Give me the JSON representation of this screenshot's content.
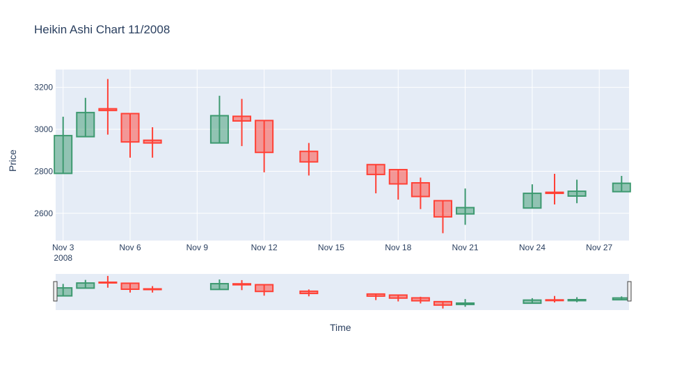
{
  "chart_data": {
    "type": "candlestick",
    "title": "Heikin Ashi Chart 11/2008",
    "xlabel": "Time",
    "ylabel": "Price",
    "x_range": [
      "2008-11-02T16:00",
      "2008-11-28T08:00"
    ],
    "ylim": [
      2470,
      3285
    ],
    "yticks": [
      2600,
      2800,
      3000,
      3200
    ],
    "xticks": [
      {
        "date": "2008-11-03",
        "label": "Nov 3",
        "sublabel": "2008"
      },
      {
        "date": "2008-11-06",
        "label": "Nov 6"
      },
      {
        "date": "2008-11-09",
        "label": "Nov 9"
      },
      {
        "date": "2008-11-12",
        "label": "Nov 12"
      },
      {
        "date": "2008-11-15",
        "label": "Nov 15"
      },
      {
        "date": "2008-11-18",
        "label": "Nov 18"
      },
      {
        "date": "2008-11-21",
        "label": "Nov 21"
      },
      {
        "date": "2008-11-24",
        "label": "Nov 24"
      },
      {
        "date": "2008-11-27",
        "label": "Nov 27"
      }
    ],
    "grid": true,
    "rangeslider": true,
    "colors": {
      "increasing": "#3d9970",
      "decreasing": "#ff4136",
      "plot_bg": "#e5ecf6",
      "grid": "#ffffff",
      "text": "#2a3f5f"
    },
    "candles": [
      {
        "date": "2008-11-03",
        "open": 2790,
        "high": 3060,
        "low": 2790,
        "close": 2970
      },
      {
        "date": "2008-11-04",
        "open": 2965,
        "high": 3150,
        "low": 2965,
        "close": 3080
      },
      {
        "date": "2008-11-05",
        "open": 3098,
        "high": 3240,
        "low": 2975,
        "close": 3090
      },
      {
        "date": "2008-11-06",
        "open": 3075,
        "high": 3075,
        "low": 2865,
        "close": 2940
      },
      {
        "date": "2008-11-07",
        "open": 2948,
        "high": 3010,
        "low": 2865,
        "close": 2935
      },
      {
        "date": "2008-11-10",
        "open": 2935,
        "high": 3160,
        "low": 2935,
        "close": 3065
      },
      {
        "date": "2008-11-11",
        "open": 3062,
        "high": 3145,
        "low": 2920,
        "close": 3040
      },
      {
        "date": "2008-11-12",
        "open": 3042,
        "high": 3042,
        "low": 2795,
        "close": 2890
      },
      {
        "date": "2008-11-14",
        "open": 2895,
        "high": 2935,
        "low": 2780,
        "close": 2845
      },
      {
        "date": "2008-11-17",
        "open": 2832,
        "high": 2832,
        "low": 2695,
        "close": 2785
      },
      {
        "date": "2008-11-18",
        "open": 2808,
        "high": 2808,
        "low": 2665,
        "close": 2740
      },
      {
        "date": "2008-11-19",
        "open": 2745,
        "high": 2770,
        "low": 2620,
        "close": 2680
      },
      {
        "date": "2008-11-20",
        "open": 2660,
        "high": 2660,
        "low": 2505,
        "close": 2583
      },
      {
        "date": "2008-11-21",
        "open": 2597,
        "high": 2718,
        "low": 2545,
        "close": 2627
      },
      {
        "date": "2008-11-24",
        "open": 2625,
        "high": 2738,
        "low": 2625,
        "close": 2695
      },
      {
        "date": "2008-11-25",
        "open": 2700,
        "high": 2788,
        "low": 2642,
        "close": 2698
      },
      {
        "date": "2008-11-26",
        "open": 2682,
        "high": 2760,
        "low": 2648,
        "close": 2705
      },
      {
        "date": "2008-11-28",
        "open": 2703,
        "high": 2778,
        "low": 2703,
        "close": 2743
      }
    ]
  }
}
